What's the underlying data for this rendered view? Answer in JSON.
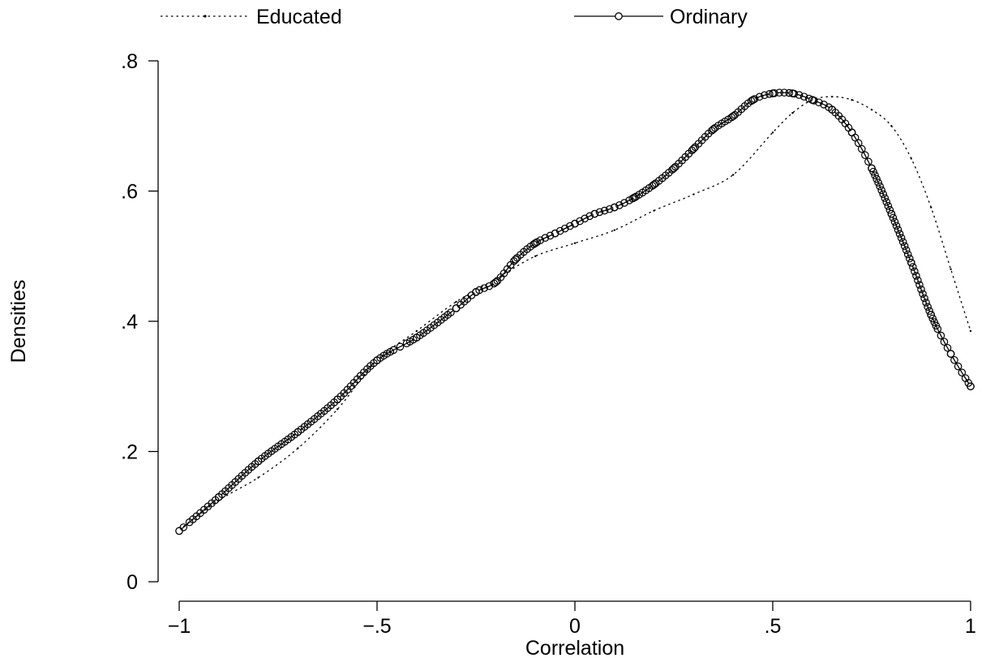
{
  "chart_data": {
    "type": "line",
    "title": "",
    "xlabel": "Correlation",
    "ylabel": "Densities",
    "xlim": [
      -1,
      1
    ],
    "ylim": [
      0,
      0.8
    ],
    "x_ticks": [
      -1,
      -0.5,
      0,
      0.5,
      1
    ],
    "x_tick_labels": [
      "−1",
      "−.5",
      "0",
      ".5",
      "1"
    ],
    "y_ticks": [
      0,
      0.2,
      0.4,
      0.6,
      0.8
    ],
    "y_tick_labels": [
      "0",
      ".2",
      ".4",
      ".6",
      ".8"
    ],
    "grid": false,
    "legend_position": "top",
    "series": [
      {
        "name": "Educated",
        "style": "dotted",
        "color": "#000000",
        "x": [
          -1.0,
          -0.9,
          -0.8,
          -0.7,
          -0.6,
          -0.5,
          -0.4,
          -0.3,
          -0.2,
          -0.1,
          0.0,
          0.1,
          0.2,
          0.3,
          0.4,
          0.5,
          0.55,
          0.6,
          0.65,
          0.7,
          0.75,
          0.8,
          0.85,
          0.9,
          0.95,
          1.0
        ],
        "y": [
          0.08,
          0.125,
          0.16,
          0.205,
          0.265,
          0.34,
          0.385,
          0.43,
          0.465,
          0.5,
          0.52,
          0.54,
          0.57,
          0.595,
          0.625,
          0.69,
          0.72,
          0.74,
          0.745,
          0.74,
          0.725,
          0.7,
          0.65,
          0.575,
          0.48,
          0.385
        ]
      },
      {
        "name": "Ordinary",
        "style": "solid-circles",
        "color": "#000000",
        "x": [
          -1.0,
          -0.9,
          -0.8,
          -0.7,
          -0.6,
          -0.5,
          -0.4,
          -0.3,
          -0.25,
          -0.2,
          -0.15,
          -0.1,
          -0.05,
          0.0,
          0.05,
          0.1,
          0.15,
          0.2,
          0.25,
          0.3,
          0.35,
          0.4,
          0.45,
          0.5,
          0.55,
          0.6,
          0.65,
          0.7,
          0.75,
          0.8,
          0.85,
          0.9,
          0.95,
          1.0
        ],
        "y": [
          0.078,
          0.13,
          0.185,
          0.23,
          0.28,
          0.34,
          0.375,
          0.42,
          0.445,
          0.46,
          0.495,
          0.52,
          0.535,
          0.55,
          0.565,
          0.575,
          0.59,
          0.61,
          0.635,
          0.665,
          0.695,
          0.715,
          0.74,
          0.75,
          0.75,
          0.74,
          0.725,
          0.69,
          0.635,
          0.565,
          0.49,
          0.41,
          0.35,
          0.3
        ]
      }
    ]
  }
}
